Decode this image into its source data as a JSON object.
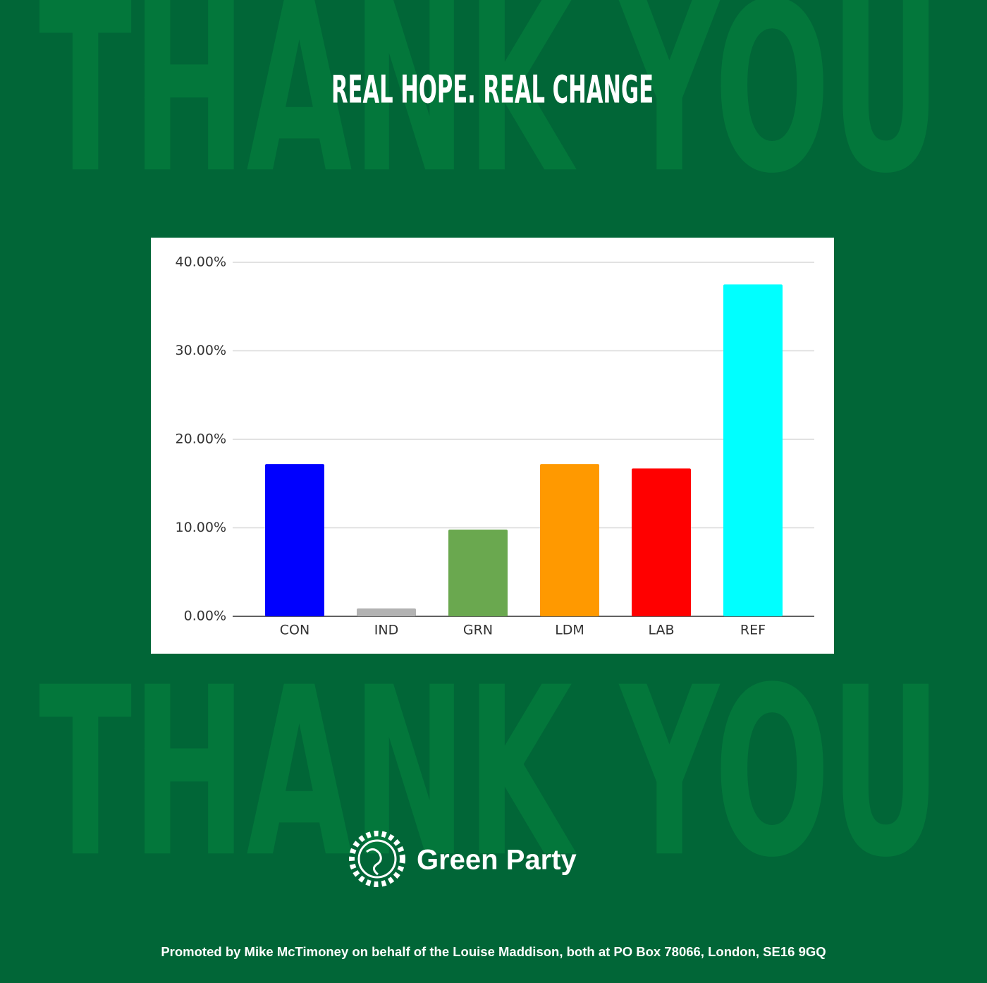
{
  "background_text": "THANK YOU",
  "heading": "REAL HOPE. REAL CHANGE",
  "logo_text": "Green Party",
  "footer": "Promoted by Mike McTimoney on behalf of the Louise Maddison, both at PO Box 78066, London, SE16 9GQ",
  "chart_data": {
    "type": "bar",
    "categories": [
      "CON",
      "IND",
      "GRN",
      "LDM",
      "LAB",
      "REF"
    ],
    "values": [
      17.2,
      0.9,
      9.8,
      17.2,
      16.7,
      37.5
    ],
    "colors": [
      "#0000ff",
      "#b3b3b3",
      "#6aa84f",
      "#ff9900",
      "#ff0000",
      "#00ffff"
    ],
    "ylim": [
      0,
      40
    ],
    "yticks": [
      {
        "value": 0,
        "label": "0.00%"
      },
      {
        "value": 10,
        "label": "10.00%"
      },
      {
        "value": 20,
        "label": "20.00%"
      },
      {
        "value": 30,
        "label": "30.00%"
      },
      {
        "value": 40,
        "label": "40.00%"
      }
    ],
    "grid": true
  }
}
